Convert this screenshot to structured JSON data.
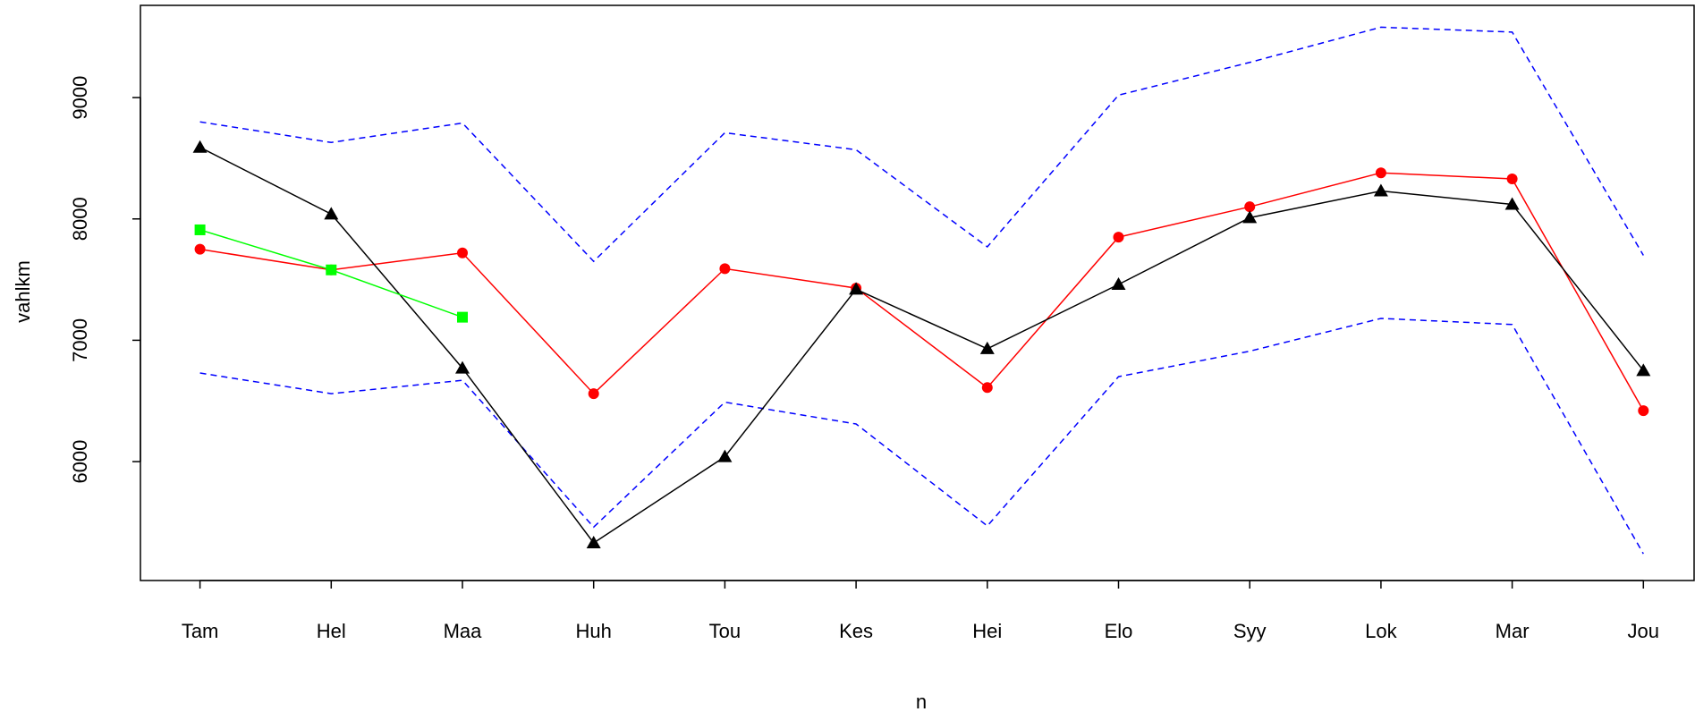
{
  "chart_data": {
    "type": "line",
    "x_label": "n",
    "y_label": "vahlkm",
    "categories": [
      "Tam",
      "Hel",
      "Maa",
      "Huh",
      "Tou",
      "Kes",
      "Hei",
      "Elo",
      "Syy",
      "Lok",
      "Mar",
      "Jou"
    ],
    "series": [
      {
        "color": "#0000ff",
        "line_style": "dashed",
        "marker": "none",
        "values": [
          8800,
          8630,
          8790,
          7650,
          8710,
          8570,
          7770,
          9020,
          9290,
          9580,
          9540,
          7700
        ]
      },
      {
        "color": "#0000ff",
        "line_style": "dashed",
        "marker": "none",
        "values": [
          6730,
          6560,
          6670,
          5460,
          6490,
          6310,
          5470,
          6700,
          6910,
          7180,
          7130,
          5240
        ]
      },
      {
        "color": "#ff0000",
        "line_style": "solid",
        "marker": "circle",
        "values": [
          7750,
          7580,
          7720,
          6560,
          7590,
          7430,
          6610,
          7850,
          8100,
          8380,
          8330,
          6420
        ]
      },
      {
        "color": "#000000",
        "line_style": "solid",
        "marker": "triangle",
        "values": [
          8590,
          8040,
          6770,
          5330,
          6040,
          7420,
          6930,
          7460,
          8010,
          8230,
          8120,
          6750
        ]
      },
      {
        "color": "#00ff00",
        "line_style": "solid",
        "marker": "square",
        "values": [
          7910,
          7580,
          7190,
          null,
          null,
          null,
          null,
          null,
          null,
          null,
          null,
          null
        ]
      }
    ],
    "ylim": [
      5020,
      9760
    ],
    "yticks": [
      6000,
      7000,
      8000,
      9000
    ]
  }
}
